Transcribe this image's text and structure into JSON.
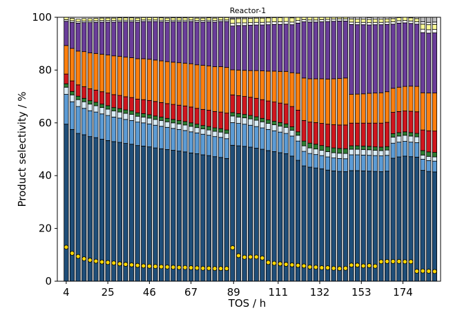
{
  "chart_data": {
    "type": "bar",
    "stacked": true,
    "title": "Reactor-1",
    "xlabel": "TOS / h",
    "ylabel": "Product selectivity / %",
    "ylim": [
      0,
      100
    ],
    "yticks": [
      0,
      20,
      40,
      60,
      80,
      100
    ],
    "xtick_labels": [
      "4",
      "25",
      "46",
      "67",
      "89",
      "111",
      "132",
      "153",
      "174"
    ],
    "xtick_positions": [
      4,
      25,
      46,
      67,
      88.5,
      111,
      132,
      153,
      174
    ],
    "xlim": [
      -0.5,
      193
    ],
    "x_step": 3,
    "x": [
      4,
      7,
      10,
      13,
      16,
      19,
      22,
      25,
      28,
      31,
      34,
      37,
      40,
      43,
      46,
      49,
      52,
      55,
      58,
      61,
      64,
      67,
      70,
      73,
      76,
      79,
      82,
      85,
      88,
      91,
      94,
      97,
      100,
      103,
      106,
      109,
      112,
      115,
      118,
      121,
      124,
      127,
      130,
      133,
      136,
      139,
      142,
      145,
      148,
      151,
      154,
      157,
      160,
      163,
      166,
      169,
      172,
      175,
      178,
      181,
      184,
      187,
      190
    ],
    "grid": false,
    "legend": "none",
    "series": [
      {
        "color": "#1f4e79",
        "values": [
          59.5,
          57.5,
          56,
          55.5,
          54.8,
          54.4,
          53.8,
          53.3,
          52.9,
          52.6,
          52.2,
          51.9,
          51.4,
          51.2,
          50.9,
          50.5,
          50.2,
          49.9,
          49.6,
          49.3,
          49,
          48.6,
          48.3,
          47.9,
          47.6,
          47.2,
          46.9,
          46.5,
          51.5,
          51.3,
          51.1,
          50.8,
          50.4,
          50,
          49.5,
          49.1,
          48.7,
          48.3,
          47.4,
          45.8,
          43.7,
          43.2,
          42.9,
          42.6,
          42.1,
          41.8,
          41.6,
          41.5,
          41.9,
          41.9,
          41.8,
          41.7,
          41.6,
          41.5,
          41.7,
          46.6,
          47.1,
          47.4,
          47.2,
          47,
          42,
          41.6,
          41.4
        ]
      },
      {
        "color": "#5b9bd5",
        "values": [
          11.3,
          10.5,
          10.2,
          10,
          9.8,
          9.7,
          9.6,
          9.5,
          9.3,
          9.2,
          9.1,
          9,
          8.9,
          8.8,
          8.7,
          8.6,
          8.5,
          8.4,
          8.3,
          8.2,
          8.1,
          8,
          7.9,
          7.8,
          7.7,
          7.6,
          7.6,
          7.5,
          8.6,
          8.5,
          8.4,
          8.3,
          8.2,
          8.1,
          8,
          7.9,
          7.8,
          7.7,
          7.6,
          7.3,
          5.5,
          5.2,
          5.1,
          5,
          5,
          4.9,
          4.9,
          4.9,
          6,
          6,
          6,
          6,
          6,
          6,
          6,
          5.7,
          5.6,
          5.6,
          5.5,
          5.5,
          4.2,
          4.1,
          4.1
        ]
      },
      {
        "color": "#d9ecf7",
        "values": [
          2.7,
          2.6,
          2.6,
          2.5,
          2.5,
          2.4,
          2.4,
          2.4,
          2.3,
          2.3,
          2.3,
          2.3,
          2.2,
          2.2,
          2.2,
          2.2,
          2.2,
          2.1,
          2.1,
          2.1,
          2.1,
          2.1,
          2,
          2,
          2,
          2,
          2,
          2,
          2.5,
          2.4,
          2.4,
          2.4,
          2.4,
          2.3,
          2.3,
          2.3,
          2.3,
          2.3,
          2.2,
          2.2,
          2.1,
          2.1,
          2.1,
          2,
          2,
          2,
          2,
          2,
          2.1,
          2.1,
          2.1,
          2.1,
          2,
          2,
          2,
          2.3,
          2.3,
          2.3,
          2.3,
          2.2,
          1.6,
          1.6,
          1.6
        ]
      },
      {
        "color": "#2e7d32",
        "values": [
          1.3,
          1.3,
          1.3,
          1.3,
          1.3,
          1.3,
          1.3,
          1.3,
          1.3,
          1.3,
          1.3,
          1.3,
          1.3,
          1.3,
          1.3,
          1.3,
          1.3,
          1.3,
          1.3,
          1.3,
          1.3,
          1.3,
          1.3,
          1.3,
          1.3,
          1.3,
          1.3,
          1.3,
          1.3,
          1.3,
          1.3,
          1.3,
          1.3,
          1.3,
          1.3,
          1.3,
          1.3,
          1.3,
          1.3,
          1.3,
          1.8,
          1.8,
          1.8,
          1.8,
          1.8,
          1.8,
          1.8,
          1.8,
          1.3,
          1.3,
          1.3,
          1.3,
          1.3,
          1.3,
          1.3,
          1.3,
          1.3,
          1.3,
          1.3,
          1.3,
          1.7,
          1.7,
          1.7
        ]
      },
      {
        "color": "#d0161e",
        "values": [
          3.7,
          4,
          4.3,
          4.4,
          4.5,
          4.6,
          4.7,
          4.8,
          4.9,
          5,
          5,
          5.1,
          5.2,
          5.3,
          5.4,
          5.5,
          5.5,
          5.6,
          5.7,
          5.8,
          5.9,
          6,
          6,
          6.1,
          6.2,
          6.2,
          6.3,
          6.4,
          6.7,
          6.8,
          6.8,
          6.9,
          7,
          7.1,
          7.2,
          7.3,
          7.4,
          7.5,
          7.7,
          8.2,
          7.8,
          8,
          8.2,
          8.4,
          8.6,
          8.8,
          8.9,
          9,
          8.6,
          8.6,
          8.7,
          8.8,
          9,
          9.1,
          9.2,
          8.1,
          8,
          7.9,
          8.1,
          8.2,
          7.8,
          8,
          8.1
        ]
      },
      {
        "color": "#ff7f0e",
        "values": [
          10.8,
          12.3,
          12.8,
          13.3,
          13.6,
          13.9,
          14.2,
          14.4,
          14.7,
          14.8,
          15,
          15.1,
          15.3,
          15.5,
          15.6,
          15.7,
          15.8,
          15.9,
          16,
          16.1,
          16.2,
          16.4,
          16.5,
          16.7,
          16.8,
          17,
          17.2,
          17.3,
          9.5,
          9.7,
          9.9,
          10.1,
          10.5,
          10.9,
          11.3,
          11.7,
          12,
          12.4,
          12.8,
          14,
          16.1,
          16.4,
          16.6,
          16.9,
          17.1,
          17.4,
          17.6,
          17.8,
          10.9,
          11,
          11.1,
          11.3,
          11.4,
          11.5,
          11.6,
          9.1,
          9.2,
          9.3,
          9.5,
          9.6,
          14.1,
          14.3,
          14.4
        ]
      },
      {
        "color": "#6a3d9a",
        "values": [
          9.2,
          9.9,
          10.6,
          11,
          11.5,
          11.8,
          12.2,
          12.5,
          12.8,
          13.1,
          13.4,
          13.6,
          13.9,
          14.1,
          14.3,
          14.6,
          14.8,
          15,
          15.3,
          15.5,
          15.7,
          16,
          16.2,
          16.4,
          16.7,
          16.9,
          17.1,
          17.4,
          16.6,
          16.9,
          17,
          17.2,
          17.3,
          17.4,
          17.6,
          17.7,
          17.8,
          17.9,
          18.2,
          19,
          21.3,
          21.5,
          21.5,
          21.6,
          21.8,
          21.8,
          21.8,
          21.6,
          26.5,
          26.3,
          26.2,
          25.9,
          25.9,
          25.8,
          25.5,
          24.3,
          24.3,
          24.1,
          23.8,
          23.6,
          22.8,
          22.7,
          22.8
        ]
      },
      {
        "color": "#ffffff",
        "values": [
          0.6,
          0.6,
          0.6,
          0.6,
          0.6,
          0.6,
          0.6,
          0.6,
          0.6,
          0.6,
          0.6,
          0.6,
          0.6,
          0.6,
          0.6,
          0.6,
          0.6,
          0.6,
          0.6,
          0.6,
          0.6,
          0.6,
          0.6,
          0.6,
          0.6,
          0.6,
          0.6,
          0.6,
          1,
          1,
          1,
          1,
          1,
          1,
          1,
          1,
          1,
          1,
          1,
          1,
          0.8,
          0.8,
          0.8,
          0.8,
          0.8,
          0.8,
          0.8,
          0.8,
          0.9,
          0.9,
          0.9,
          0.9,
          0.9,
          0.9,
          0.9,
          0.9,
          0.9,
          0.9,
          0.9,
          0.9,
          1.3,
          1.3,
          1.3
        ]
      },
      {
        "color": "#ffff99",
        "values": [
          0.9,
          0.9,
          0.9,
          0.9,
          0.9,
          0.9,
          0.9,
          0.9,
          0.9,
          0.9,
          0.9,
          0.9,
          0.9,
          0.9,
          0.9,
          0.9,
          0.9,
          0.9,
          0.9,
          0.9,
          0.9,
          0.9,
          0.9,
          0.9,
          0.9,
          0.9,
          0.9,
          0.9,
          1.6,
          1.6,
          1.6,
          1.6,
          1.6,
          1.6,
          1.6,
          1.6,
          1.6,
          1.6,
          1.6,
          1.6,
          1.2,
          1.2,
          1.2,
          1.2,
          1.2,
          1.2,
          1.2,
          1.2,
          1.2,
          1.2,
          1.2,
          1.2,
          1.2,
          1.2,
          1.2,
          1.2,
          1.2,
          1.2,
          1.2,
          1.2,
          1.9,
          1.9,
          1.9
        ]
      },
      {
        "color": "#f5f5f5",
        "values": [
          0,
          0,
          0,
          0,
          0,
          0,
          0,
          0,
          0,
          0,
          0,
          0,
          0,
          0,
          0,
          0,
          0,
          0,
          0,
          0,
          0,
          0,
          0,
          0,
          0,
          0,
          0,
          0,
          0.4,
          0.4,
          0.4,
          0.4,
          0.4,
          0.4,
          0.4,
          0.4,
          0.4,
          0.4,
          0.4,
          0.4,
          0.7,
          0.7,
          0.7,
          0.7,
          0.7,
          0.7,
          0.7,
          0.7,
          0.7,
          0.7,
          0.7,
          0.7,
          0.7,
          0.7,
          0.7,
          0.7,
          0.7,
          0.7,
          0.7,
          0.7,
          0.9,
          0.9,
          0.9
        ]
      },
      {
        "color": "#bdbdbd",
        "values": [
          0,
          0,
          0,
          0,
          0,
          0,
          0,
          0,
          0,
          0,
          0,
          0,
          0,
          0,
          0,
          0,
          0,
          0,
          0,
          0,
          0,
          0,
          0,
          0,
          0,
          0,
          0,
          0,
          0,
          0,
          0,
          0,
          0,
          0,
          0,
          0,
          0,
          0,
          0,
          0,
          2.4,
          2.4,
          2.4,
          2.4,
          2.4,
          2.4,
          2.4,
          2.4,
          2.8,
          2.8,
          2.8,
          2.8,
          2.8,
          2.8,
          2.8,
          3,
          3,
          3,
          3,
          3,
          3.6,
          3.7,
          3.7
        ]
      }
    ],
    "scatter": {
      "color": "#ffd700",
      "values": [
        12.9,
        10.6,
        9.4,
        8.5,
        8,
        7.6,
        7.3,
        7.1,
        6.9,
        6.6,
        6.4,
        6.2,
        6,
        5.8,
        5.7,
        5.6,
        5.5,
        5.4,
        5.3,
        5.2,
        5.2,
        5.1,
        5,
        4.9,
        4.9,
        4.8,
        4.8,
        4.8,
        12.7,
        9.7,
        9.1,
        9.2,
        9.2,
        8.8,
        7.1,
        6.8,
        6.6,
        6.4,
        6.2,
        6,
        5.8,
        5.4,
        5.3,
        5.1,
        5.1,
        4.9,
        4.8,
        4.9,
        6.1,
        6.1,
        5.8,
        5.9,
        5.7,
        7.4,
        7.5,
        7.5,
        7.5,
        7.4,
        7.4,
        3.8,
        3.9,
        3.8,
        3.7
      ]
    }
  }
}
